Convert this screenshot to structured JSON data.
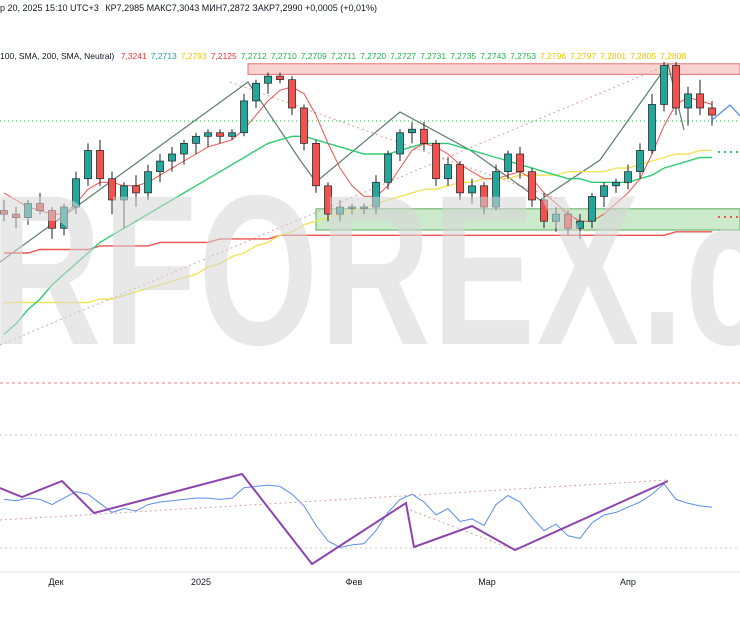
{
  "header": {
    "ohlc": "р 20, 2025 15:10 UTC+3",
    "values": "КР7,2985  МАКС7,3043  МИН7,2872  ЗАКР7,2990  +0,0005 (+0,01%)",
    "ma_label": "100, SMA, 200, SMA, Neutral)",
    "ma_values": [
      {
        "text": "7,3241",
        "color": "#e53935"
      },
      {
        "text": "7,2713",
        "color": "#26a69a"
      },
      {
        "text": "7,2793",
        "color": "#e6c800"
      },
      {
        "text": "7,2125",
        "color": "#e53935"
      },
      {
        "text": "7,2712",
        "color": "#22b14c"
      },
      {
        "text": "7,2710",
        "color": "#22b14c"
      },
      {
        "text": "7,2709",
        "color": "#22b14c"
      },
      {
        "text": "7,2711",
        "color": "#22b14c"
      },
      {
        "text": "7,2720",
        "color": "#22b14c"
      },
      {
        "text": "7,2727",
        "color": "#22b14c"
      },
      {
        "text": "7,2731",
        "color": "#22b14c"
      },
      {
        "text": "7,2735",
        "color": "#22b14c"
      },
      {
        "text": "7,2743",
        "color": "#22b14c"
      },
      {
        "text": "7,2753",
        "color": "#22b14c"
      },
      {
        "text": "7,2796",
        "color": "#e6c800"
      },
      {
        "text": "7,2797",
        "color": "#e6c800"
      },
      {
        "text": "7,2801",
        "color": "#e6c800"
      },
      {
        "text": "7,2805",
        "color": "#e6c800"
      },
      {
        "text": "7,2808",
        "color": "#e6c800"
      }
    ]
  },
  "watermark": "RFOREX.c",
  "chart_data": {
    "type": "candlestick",
    "x_labels": [
      "Дек",
      "2025",
      "Фев",
      "Мар",
      "Апр"
    ],
    "colors": {
      "up": "#26a69a",
      "down": "#ef5350",
      "ma_fast": "#ef5350",
      "ma_mid": "#2ecc71",
      "ma_slow": "#f2e45a",
      "ma_long": "#ef5350",
      "indicator": "#5b8def",
      "trend": "#8e44ad"
    },
    "zones": [
      {
        "name": "resistance",
        "color": "#f8c8c8",
        "from": 7.3045,
        "to": 7.3015
      },
      {
        "name": "support",
        "color": "#bfe5bf",
        "from": 7.2635,
        "to": 7.2575
      }
    ],
    "candles": [
      [
        7.263,
        7.266,
        7.26,
        7.262
      ],
      [
        7.262,
        7.264,
        7.258,
        7.261
      ],
      [
        7.261,
        7.266,
        7.259,
        7.265
      ],
      [
        7.265,
        7.268,
        7.262,
        7.263
      ],
      [
        7.263,
        7.264,
        7.255,
        7.258
      ],
      [
        7.258,
        7.265,
        7.256,
        7.264
      ],
      [
        7.264,
        7.274,
        7.262,
        7.272
      ],
      [
        7.272,
        7.282,
        7.27,
        7.28
      ],
      [
        7.28,
        7.283,
        7.27,
        7.272
      ],
      [
        7.272,
        7.274,
        7.262,
        7.266
      ],
      [
        7.266,
        7.271,
        7.258,
        7.27
      ],
      [
        7.27,
        7.273,
        7.264,
        7.268
      ],
      [
        7.268,
        7.276,
        7.266,
        7.274
      ],
      [
        7.274,
        7.279,
        7.271,
        7.277
      ],
      [
        7.277,
        7.281,
        7.274,
        7.279
      ],
      [
        7.279,
        7.283,
        7.276,
        7.282
      ],
      [
        7.282,
        7.285,
        7.279,
        7.284
      ],
      [
        7.284,
        7.286,
        7.281,
        7.285
      ],
      [
        7.285,
        7.286,
        7.282,
        7.284
      ],
      [
        7.284,
        7.286,
        7.283,
        7.285
      ],
      [
        7.285,
        7.296,
        7.284,
        7.294
      ],
      [
        7.294,
        7.3,
        7.292,
        7.299
      ],
      [
        7.299,
        7.302,
        7.296,
        7.301
      ],
      [
        7.301,
        7.302,
        7.299,
        7.3
      ],
      [
        7.3,
        7.301,
        7.29,
        7.292
      ],
      [
        7.292,
        7.293,
        7.28,
        7.282
      ],
      [
        7.282,
        7.283,
        7.268,
        7.27
      ],
      [
        7.27,
        7.271,
        7.26,
        7.262
      ],
      [
        7.262,
        7.266,
        7.26,
        7.264
      ],
      [
        7.264,
        7.265,
        7.262,
        7.264
      ],
      [
        7.264,
        7.265,
        7.262,
        7.264
      ],
      [
        7.264,
        7.273,
        7.262,
        7.271
      ],
      [
        7.271,
        7.28,
        7.269,
        7.279
      ],
      [
        7.279,
        7.286,
        7.277,
        7.285
      ],
      [
        7.285,
        7.288,
        7.282,
        7.286
      ],
      [
        7.286,
        7.288,
        7.28,
        7.282
      ],
      [
        7.282,
        7.283,
        7.27,
        7.272
      ],
      [
        7.272,
        7.278,
        7.27,
        7.276
      ],
      [
        7.276,
        7.277,
        7.266,
        7.268
      ],
      [
        7.268,
        7.272,
        7.265,
        7.27
      ],
      [
        7.27,
        7.271,
        7.262,
        7.264
      ],
      [
        7.264,
        7.276,
        7.263,
        7.274
      ],
      [
        7.274,
        7.28,
        7.272,
        7.279
      ],
      [
        7.279,
        7.281,
        7.272,
        7.274
      ],
      [
        7.274,
        7.275,
        7.264,
        7.266
      ],
      [
        7.266,
        7.268,
        7.258,
        7.26
      ],
      [
        7.26,
        7.264,
        7.257,
        7.262
      ],
      [
        7.262,
        7.263,
        7.256,
        7.258
      ],
      [
        7.258,
        7.262,
        7.255,
        7.26
      ],
      [
        7.26,
        7.268,
        7.258,
        7.267
      ],
      [
        7.267,
        7.271,
        7.264,
        7.27
      ],
      [
        7.27,
        7.272,
        7.268,
        7.271
      ],
      [
        7.271,
        7.276,
        7.269,
        7.274
      ],
      [
        7.274,
        7.282,
        7.272,
        7.28
      ],
      [
        7.28,
        7.296,
        7.279,
        7.293
      ],
      [
        7.293,
        7.305,
        7.291,
        7.304
      ],
      [
        7.304,
        7.305,
        7.29,
        7.292
      ],
      [
        7.292,
        7.298,
        7.287,
        7.296
      ],
      [
        7.296,
        7.3,
        7.29,
        7.292
      ],
      [
        7.292,
        7.294,
        7.287,
        7.29
      ]
    ],
    "ma_fast": [
      7.268,
      7.266,
      7.264,
      7.263,
      7.262,
      7.262,
      7.265,
      7.269,
      7.271,
      7.271,
      7.27,
      7.27,
      7.271,
      7.273,
      7.275,
      7.277,
      7.279,
      7.281,
      7.282,
      7.283,
      7.286,
      7.29,
      7.294,
      7.297,
      7.298,
      7.296,
      7.29,
      7.282,
      7.275,
      7.27,
      7.267,
      7.267,
      7.27,
      7.275,
      7.28,
      7.282,
      7.281,
      7.279,
      7.276,
      7.274,
      7.272,
      7.272,
      7.273,
      7.274,
      7.272,
      7.268,
      7.265,
      7.262,
      7.26,
      7.26,
      7.262,
      7.265,
      7.268,
      7.272,
      7.279,
      7.287,
      7.293,
      7.295,
      7.294,
      7.293
    ],
    "ma_mid": [
      7.228,
      7.231,
      7.235,
      7.238,
      7.242,
      7.245,
      7.248,
      7.251,
      7.254,
      7.256,
      7.258,
      7.26,
      7.262,
      7.264,
      7.266,
      7.268,
      7.27,
      7.272,
      7.274,
      7.276,
      7.278,
      7.28,
      7.282,
      7.283,
      7.284,
      7.284,
      7.283,
      7.282,
      7.281,
      7.28,
      7.279,
      7.279,
      7.279,
      7.28,
      7.281,
      7.282,
      7.282,
      7.282,
      7.281,
      7.28,
      7.279,
      7.278,
      7.277,
      7.276,
      7.275,
      7.274,
      7.273,
      7.272,
      7.272,
      7.271,
      7.271,
      7.271,
      7.271,
      7.272,
      7.273,
      7.275,
      7.276,
      7.277,
      7.278,
      7.278
    ],
    "ma_slow": [
      7.237,
      7.237,
      7.237,
      7.237,
      7.237,
      7.237,
      7.237,
      7.237,
      7.238,
      7.238,
      7.239,
      7.24,
      7.241,
      7.242,
      7.243,
      7.244,
      7.245,
      7.247,
      7.248,
      7.25,
      7.251,
      7.253,
      7.254,
      7.256,
      7.257,
      7.259,
      7.26,
      7.261,
      7.262,
      7.263,
      7.264,
      7.265,
      7.266,
      7.267,
      7.268,
      7.269,
      7.269,
      7.27,
      7.271,
      7.271,
      7.272,
      7.272,
      7.272,
      7.273,
      7.273,
      7.273,
      7.273,
      7.274,
      7.274,
      7.274,
      7.274,
      7.275,
      7.275,
      7.276,
      7.277,
      7.278,
      7.279,
      7.279,
      7.28,
      7.28
    ],
    "ma_long": [
      7.251,
      7.251,
      7.251,
      7.252,
      7.252,
      7.252,
      7.252,
      7.252,
      7.253,
      7.253,
      7.253,
      7.253,
      7.253,
      7.254,
      7.254,
      7.254,
      7.254,
      7.254,
      7.255,
      7.255,
      7.255,
      7.255,
      7.255,
      7.256,
      7.256,
      7.256,
      7.256,
      7.256,
      7.256,
      7.256,
      7.256,
      7.256,
      7.256,
      7.256,
      7.256,
      7.256,
      7.256,
      7.256,
      7.256,
      7.256,
      7.256,
      7.256,
      7.256,
      7.256,
      7.256,
      7.256,
      7.256,
      7.256,
      7.256,
      7.256,
      7.256,
      7.256,
      7.256,
      7.256,
      7.256,
      7.256,
      7.257,
      7.257,
      7.257,
      7.257
    ],
    "indicator": [
      62,
      61,
      63,
      62,
      58,
      63,
      68,
      66,
      59,
      52,
      55,
      53,
      58,
      60,
      61,
      62,
      63,
      63,
      62,
      63,
      71,
      72,
      73,
      72,
      66,
      57,
      42,
      30,
      25,
      27,
      28,
      38,
      52,
      62,
      66,
      60,
      50,
      55,
      45,
      47,
      42,
      58,
      65,
      60,
      48,
      38,
      43,
      34,
      32,
      44,
      50,
      52,
      56,
      60,
      66,
      74,
      62,
      59,
      57,
      56
    ]
  }
}
